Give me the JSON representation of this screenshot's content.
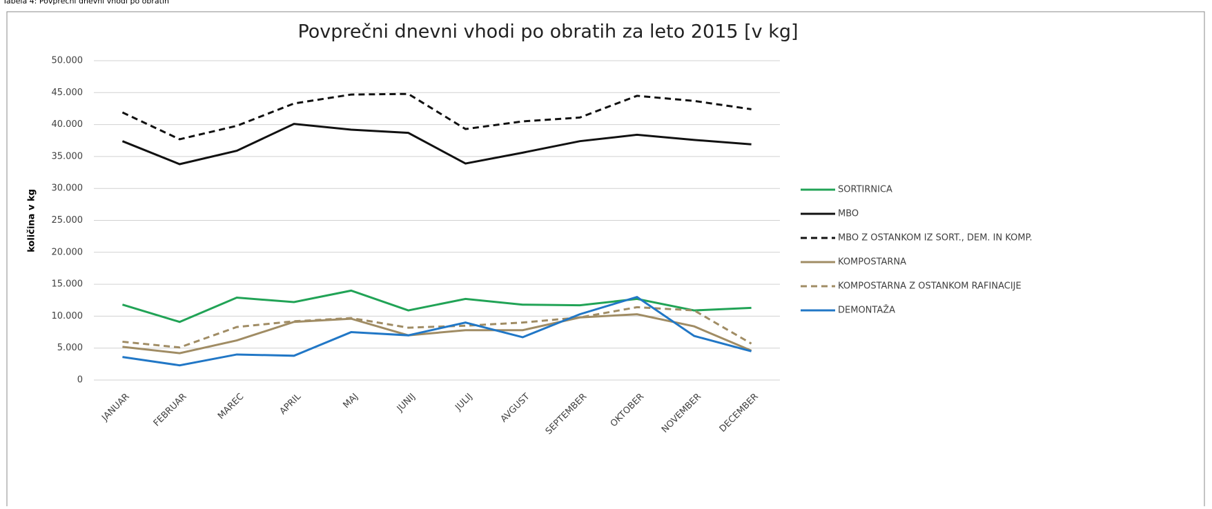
{
  "caption": "Tabela 4: Povprečni dnevni vhodi po obratih",
  "chart_data": {
    "type": "line",
    "title": "Povprečni dnevni vhodi po obratih za leto 2015 [v kg]",
    "y_label": "količina v kg",
    "categories": [
      "JANUAR",
      "FEBRUAR",
      "MAREC",
      "APRIL",
      "MAJ",
      "JUNIJ",
      "JULIJ",
      "AVGUST",
      "SEPTEMBER",
      "OKTOBER",
      "NOVEMBER",
      "DECEMBER"
    ],
    "ylim": [
      0,
      50000
    ],
    "yticks": [
      0,
      {
        "value": 5000,
        "label": "5.000"
      },
      {
        "value": 10000,
        "label": "10.000"
      },
      {
        "value": 15000,
        "label": "15.000"
      },
      {
        "value": 20000,
        "label": "20.000"
      },
      {
        "value": 25000,
        "label": "25.000"
      },
      {
        "value": 30000,
        "label": "30.000"
      },
      {
        "value": 35000,
        "label": "35.000"
      },
      {
        "value": 40000,
        "label": "40.000"
      },
      {
        "value": 45000,
        "label": "45.000"
      },
      {
        "value": 50000,
        "label": "50.000"
      }
    ],
    "grid": true,
    "legend": "right",
    "series": [
      {
        "name": "SORTIRNICA",
        "color": "#21a356",
        "dashed": false,
        "values": [
          11800,
          9100,
          12900,
          12200,
          14000,
          10900,
          12700,
          11800,
          11700,
          12700,
          10900,
          11300
        ]
      },
      {
        "name": "MBO",
        "color": "#111111",
        "dashed": false,
        "values": [
          37400,
          33800,
          35900,
          40100,
          39200,
          38700,
          33900,
          35600,
          37400,
          38400,
          37600,
          36900
        ]
      },
      {
        "name": "MBO Z OSTANKOM IZ SORT., DEM. IN KOMP.",
        "color": "#111111",
        "dashed": true,
        "values": [
          41900,
          37700,
          39800,
          43300,
          44700,
          44800,
          39300,
          40500,
          41100,
          44500,
          43700,
          42400
        ]
      },
      {
        "name": "KOMPOSTARNA",
        "color": "#a08c64",
        "dashed": false,
        "values": [
          5200,
          4200,
          6200,
          9100,
          9600,
          7000,
          7800,
          7800,
          9800,
          10300,
          8400,
          4600
        ]
      },
      {
        "name": "KOMPOSTARNA Z OSTANKOM RAFINACIJE",
        "color": "#a08c64",
        "dashed": true,
        "values": [
          6000,
          5100,
          8300,
          9200,
          9700,
          8200,
          8500,
          9000,
          9800,
          11400,
          10900,
          5700
        ]
      },
      {
        "name": "DEMONTAŽA",
        "color": "#2177c6",
        "dashed": false,
        "values": [
          3600,
          2300,
          4000,
          3800,
          7500,
          7000,
          9000,
          6700,
          10300,
          13000,
          6900,
          4500
        ]
      }
    ]
  }
}
